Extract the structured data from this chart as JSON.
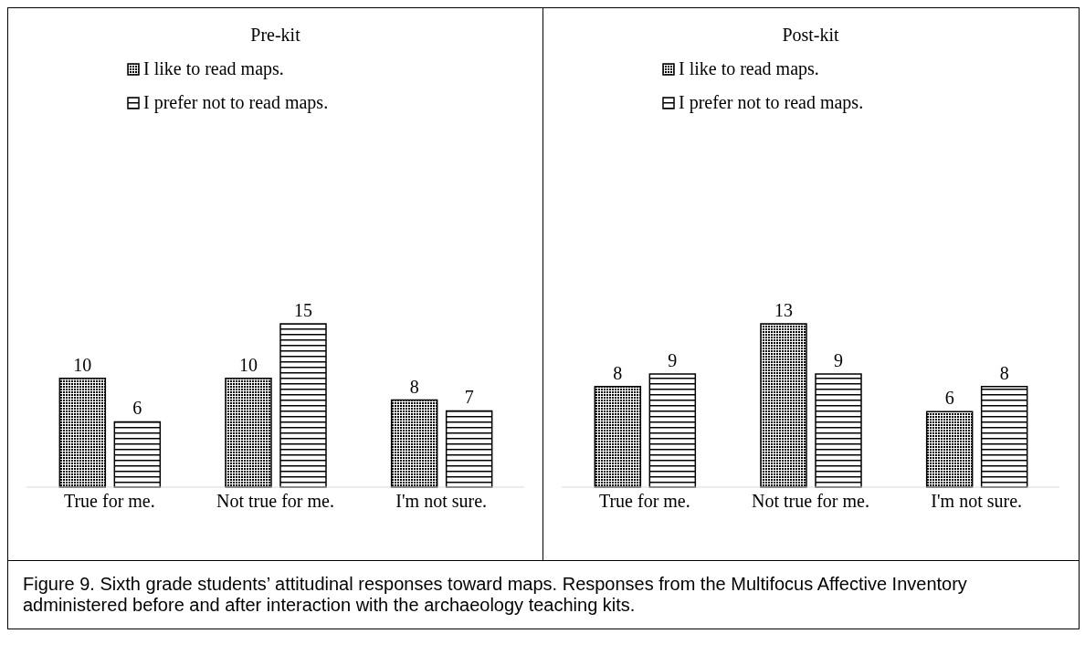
{
  "chart_data": [
    {
      "type": "bar",
      "title": "Pre-kit",
      "categories": [
        "True for me.",
        "Not true for me.",
        "I'm not sure."
      ],
      "series": [
        {
          "name": "I like to read maps.",
          "color": "#000000",
          "values": [
            10,
            10,
            8
          ]
        },
        {
          "name": "I prefer not to read maps.",
          "color": "#000000",
          "values": [
            6,
            15,
            7
          ]
        }
      ],
      "data_labels": true,
      "legend": "top",
      "grid": false,
      "annotations": [
        "Figure 9. Sixth grade students’ attitudinal responses toward maps. Responses from the Multifocus Affective Inventory administered before and after interaction with the archaeology teaching kits."
      ]
    },
    {
      "type": "bar",
      "title": "Post-kit",
      "categories": [
        "True for me.",
        "Not true for me.",
        "I'm not sure."
      ],
      "series": [
        {
          "name": "I like to read maps.",
          "color": "#000000",
          "values": [
            8,
            13,
            6
          ]
        },
        {
          "name": "I prefer not to read maps.",
          "color": "#000000",
          "values": [
            9,
            9,
            8
          ]
        }
      ],
      "data_labels": true,
      "legend": "top",
      "grid": false
    }
  ]
}
